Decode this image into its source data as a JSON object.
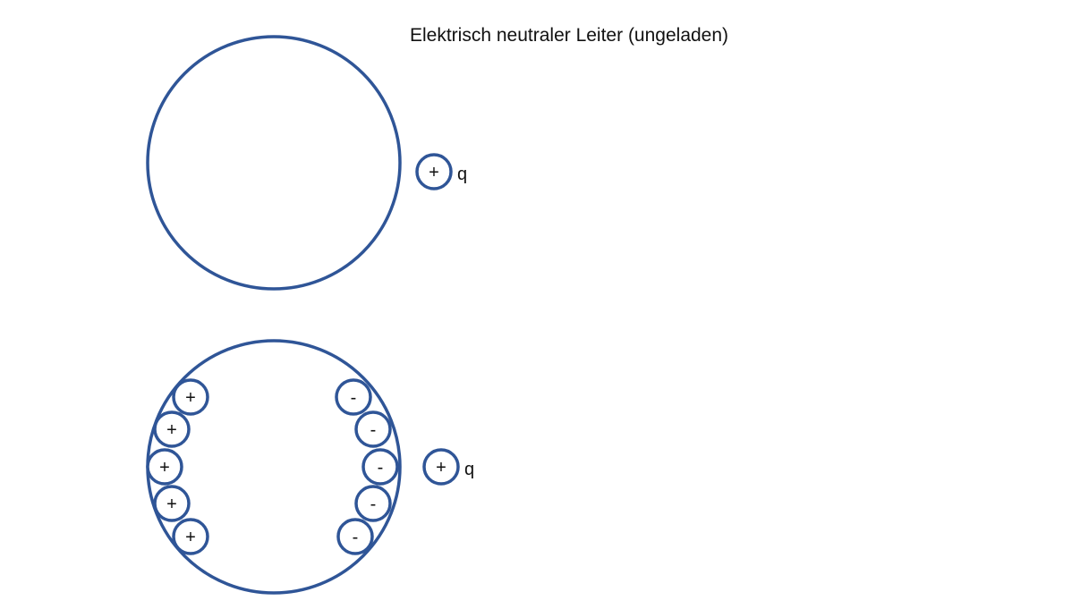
{
  "title": "Elektrisch neutraler Leiter (ungeladen)",
  "colors": {
    "outline": "#2f5597",
    "text": "#111111"
  },
  "diagram_top": {
    "test_charge": {
      "symbol": "+",
      "label": "q"
    }
  },
  "diagram_bottom": {
    "test_charge": {
      "symbol": "+",
      "label": "q"
    },
    "induced_left": [
      "+",
      "+",
      "+",
      "+",
      "+"
    ],
    "induced_right": [
      "-",
      "-",
      "-",
      "-",
      "-"
    ]
  }
}
